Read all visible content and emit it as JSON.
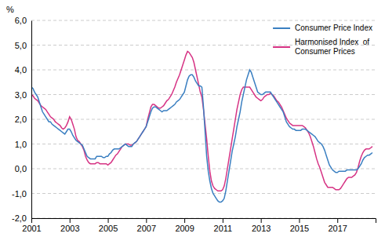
{
  "chart_data": {
    "type": "line",
    "ylabel": "%",
    "x": [
      2001,
      2001.0833333333333,
      2001.1666666666667,
      2001.25,
      2001.3333333333333,
      2001.4166666666667,
      2001.5,
      2001.5833333333333,
      2001.6666666666667,
      2001.75,
      2001.8333333333333,
      2001.9166666666667,
      2002,
      2002.0833333333333,
      2002.1666666666667,
      2002.25,
      2002.3333333333333,
      2002.4166666666667,
      2002.5,
      2002.5833333333333,
      2002.6666666666667,
      2002.75,
      2002.8333333333333,
      2002.9166666666667,
      2003,
      2003.0833333333333,
      2003.1666666666667,
      2003.25,
      2003.3333333333333,
      2003.4166666666667,
      2003.5,
      2003.5833333333333,
      2003.6666666666667,
      2003.75,
      2003.8333333333333,
      2003.9166666666667,
      2004,
      2004.0833333333333,
      2004.1666666666667,
      2004.25,
      2004.3333333333333,
      2004.4166666666667,
      2004.5,
      2004.5833333333333,
      2004.6666666666667,
      2004.75,
      2004.8333333333333,
      2004.9166666666667,
      2005,
      2005.0833333333333,
      2005.1666666666667,
      2005.25,
      2005.3333333333333,
      2005.4166666666667,
      2005.5,
      2005.5833333333333,
      2005.6666666666667,
      2005.75,
      2005.8333333333333,
      2005.9166666666667,
      2006,
      2006.0833333333333,
      2006.1666666666667,
      2006.25,
      2006.3333333333333,
      2006.4166666666667,
      2006.5,
      2006.5833333333333,
      2006.6666666666667,
      2006.75,
      2006.8333333333333,
      2006.9166666666667,
      2007,
      2007.0833333333333,
      2007.1666666666667,
      2007.25,
      2007.3333333333333,
      2007.4166666666667,
      2007.5,
      2007.5833333333333,
      2007.6666666666667,
      2007.75,
      2007.8333333333333,
      2007.9166666666667,
      2008,
      2008.0833333333333,
      2008.1666666666667,
      2008.25,
      2008.3333333333333,
      2008.4166666666667,
      2008.5,
      2008.5833333333333,
      2008.6666666666667,
      2008.75,
      2008.8333333333333,
      2008.9166666666667,
      2009,
      2009.0833333333333,
      2009.1666666666667,
      2009.25,
      2009.3333333333333,
      2009.4166666666667,
      2009.5,
      2009.5833333333333,
      2009.6666666666667,
      2009.75,
      2009.8333333333333,
      2009.9166666666667,
      2010,
      2010.0833333333333,
      2010.1666666666667,
      2010.25,
      2010.3333333333333,
      2010.4166666666667,
      2010.5,
      2010.5833333333333,
      2010.6666666666667,
      2010.75,
      2010.8333333333333,
      2010.9166666666667,
      2011,
      2011.0833333333333,
      2011.1666666666667,
      2011.25,
      2011.3333333333333,
      2011.4166666666667,
      2011.5,
      2011.5833333333333,
      2011.6666666666667,
      2011.75,
      2011.8333333333333,
      2011.9166666666667,
      2012,
      2012.0833333333333,
      2012.1666666666667,
      2012.25,
      2012.3333333333333,
      2012.4166666666667,
      2012.5,
      2012.5833333333333,
      2012.6666666666667,
      2012.75,
      2012.8333333333333,
      2012.9166666666667,
      2013,
      2013.0833333333333,
      2013.1666666666667,
      2013.25,
      2013.3333333333333,
      2013.4166666666667,
      2013.5,
      2013.5833333333333,
      2013.6666666666667,
      2013.75,
      2013.8333333333333,
      2013.9166666666667,
      2014,
      2014.0833333333333,
      2014.1666666666667,
      2014.25,
      2014.3333333333333,
      2014.4166666666667,
      2014.5,
      2014.5833333333333,
      2014.6666666666667,
      2014.75,
      2014.8333333333333,
      2014.9166666666667,
      2015,
      2015.0833333333333,
      2015.1666666666667,
      2015.25,
      2015.3333333333333,
      2015.4166666666667,
      2015.5,
      2015.5833333333333,
      2015.6666666666667,
      2015.75,
      2015.8333333333333,
      2015.9166666666667,
      2016,
      2016.0833333333333,
      2016.1666666666667,
      2016.25,
      2016.3333333333333,
      2016.4166666666667,
      2016.5,
      2016.5833333333333,
      2016.6666666666667,
      2016.75,
      2016.8333333333333,
      2016.9166666666667,
      2017,
      2017.0833333333333,
      2017.1666666666667,
      2017.25,
      2017.3333333333333,
      2017.4166666666667,
      2017.5,
      2017.5833333333333,
      2017.6666666666667,
      2017.75,
      2017.8333333333333,
      2017.9166666666667,
      2018,
      2018.0833333333333,
      2018.1666666666667,
      2018.25,
      2018.3333333333333,
      2018.4166666666667,
      2018.5,
      2018.5833333333333,
      2018.6666666666667,
      2018.75,
      2018.8333333333333
    ],
    "series": [
      {
        "name": "Consumer Price Index",
        "color": "#3a7fc1",
        "values": [
          3.3,
          3.25,
          3.1,
          3.0,
          2.9,
          2.7,
          2.5,
          2.3,
          2.2,
          2.1,
          2.0,
          1.9,
          1.9,
          1.8,
          1.75,
          1.7,
          1.65,
          1.6,
          1.55,
          1.5,
          1.45,
          1.4,
          1.5,
          1.6,
          1.6,
          1.5,
          1.35,
          1.25,
          1.15,
          1.1,
          1.05,
          1.0,
          0.95,
          0.8,
          0.65,
          0.5,
          0.45,
          0.4,
          0.4,
          0.4,
          0.4,
          0.5,
          0.5,
          0.5,
          0.5,
          0.45,
          0.45,
          0.5,
          0.5,
          0.6,
          0.65,
          0.75,
          0.8,
          0.8,
          0.8,
          0.8,
          0.85,
          0.9,
          0.95,
          1.0,
          0.95,
          0.9,
          0.9,
          0.9,
          1.0,
          1.05,
          1.1,
          1.2,
          1.3,
          1.4,
          1.5,
          1.6,
          1.7,
          1.9,
          2.1,
          2.3,
          2.45,
          2.5,
          2.5,
          2.45,
          2.4,
          2.35,
          2.3,
          2.35,
          2.35,
          2.35,
          2.4,
          2.45,
          2.5,
          2.55,
          2.6,
          2.7,
          2.75,
          2.8,
          2.9,
          3.0,
          3.1,
          3.35,
          3.6,
          3.75,
          3.8,
          3.8,
          3.7,
          3.55,
          3.45,
          3.35,
          3.35,
          3.3,
          2.5,
          1.5,
          0.5,
          -0.1,
          -0.5,
          -0.8,
          -1.0,
          -1.1,
          -1.2,
          -1.3,
          -1.35,
          -1.35,
          -1.3,
          -1.2,
          -0.9,
          -0.5,
          -0.1,
          0.3,
          0.7,
          1.0,
          1.3,
          1.7,
          2.0,
          2.3,
          2.7,
          3.0,
          3.3,
          3.6,
          3.8,
          4.0,
          3.9,
          3.7,
          3.5,
          3.3,
          3.1,
          3.05,
          3.0,
          3.0,
          3.05,
          3.1,
          3.1,
          3.1,
          3.1,
          3.0,
          2.9,
          2.8,
          2.7,
          2.6,
          2.5,
          2.4,
          2.3,
          2.1,
          1.9,
          1.8,
          1.7,
          1.65,
          1.6,
          1.6,
          1.55,
          1.55,
          1.55,
          1.55,
          1.6,
          1.6,
          1.6,
          1.55,
          1.5,
          1.45,
          1.4,
          1.35,
          1.3,
          1.2,
          1.1,
          1.05,
          1.0,
          0.9,
          0.75,
          0.55,
          0.35,
          0.15,
          0.05,
          -0.05,
          -0.1,
          -0.15,
          -0.15,
          -0.1,
          -0.1,
          -0.1,
          -0.1,
          -0.1,
          -0.05,
          -0.05,
          -0.05,
          -0.05,
          -0.05,
          -0.05,
          -0.05,
          0.0,
          0.1,
          0.2,
          0.35,
          0.45,
          0.5,
          0.55,
          0.55,
          0.6,
          0.65
        ]
      },
      {
        "name": "Harmonised Index  of\nConsumer Prices",
        "color": "#d63384",
        "values": [
          3.0,
          2.95,
          2.85,
          2.8,
          2.75,
          2.65,
          2.55,
          2.5,
          2.45,
          2.4,
          2.3,
          2.2,
          2.1,
          2.05,
          2.0,
          1.9,
          1.85,
          1.8,
          1.75,
          1.65,
          1.6,
          1.65,
          1.75,
          1.9,
          2.1,
          2.0,
          1.8,
          1.6,
          1.3,
          1.15,
          1.1,
          1.0,
          0.9,
          0.75,
          0.5,
          0.35,
          0.25,
          0.2,
          0.2,
          0.2,
          0.2,
          0.25,
          0.25,
          0.2,
          0.2,
          0.2,
          0.2,
          0.2,
          0.15,
          0.2,
          0.25,
          0.35,
          0.45,
          0.55,
          0.6,
          0.7,
          0.8,
          0.9,
          0.95,
          1.0,
          1.0,
          1.0,
          0.95,
          0.95,
          1.0,
          1.05,
          1.1,
          1.2,
          1.3,
          1.4,
          1.5,
          1.6,
          1.7,
          2.0,
          2.25,
          2.5,
          2.6,
          2.6,
          2.55,
          2.5,
          2.45,
          2.45,
          2.5,
          2.55,
          2.65,
          2.75,
          2.8,
          2.9,
          3.0,
          3.15,
          3.3,
          3.5,
          3.65,
          3.8,
          4.0,
          4.2,
          4.4,
          4.6,
          4.75,
          4.7,
          4.6,
          4.5,
          4.3,
          4.0,
          3.7,
          3.4,
          3.1,
          2.9,
          2.4,
          1.8,
          1.2,
          0.5,
          -0.1,
          -0.5,
          -0.7,
          -0.8,
          -0.85,
          -0.9,
          -0.9,
          -0.9,
          -0.85,
          -0.7,
          -0.4,
          0.0,
          0.4,
          0.8,
          1.2,
          1.6,
          2.0,
          2.4,
          2.7,
          3.0,
          3.2,
          3.3,
          3.3,
          3.3,
          3.3,
          3.3,
          3.2,
          3.1,
          3.0,
          2.9,
          2.85,
          2.8,
          2.75,
          2.8,
          2.9,
          2.95,
          3.0,
          3.0,
          3.05,
          3.0,
          2.95,
          2.85,
          2.75,
          2.7,
          2.6,
          2.5,
          2.35,
          2.2,
          2.05,
          1.95,
          1.85,
          1.8,
          1.75,
          1.75,
          1.75,
          1.75,
          1.75,
          1.75,
          1.75,
          1.7,
          1.65,
          1.55,
          1.45,
          1.3,
          1.1,
          0.9,
          0.65,
          0.4,
          0.2,
          0.05,
          -0.15,
          -0.35,
          -0.55,
          -0.65,
          -0.75,
          -0.75,
          -0.75,
          -0.75,
          -0.8,
          -0.85,
          -0.85,
          -0.85,
          -0.8,
          -0.7,
          -0.6,
          -0.5,
          -0.4,
          -0.35,
          -0.35,
          -0.35,
          -0.3,
          -0.25,
          -0.15,
          0.05,
          0.3,
          0.5,
          0.65,
          0.75,
          0.8,
          0.8,
          0.8,
          0.85,
          0.9
        ]
      }
    ],
    "xlim": [
      2001.0,
      2019.0
    ],
    "xticks": [
      2001,
      2003,
      2005,
      2007,
      2009,
      2011,
      2013,
      2015,
      2017
    ],
    "ylim": [
      -2.0,
      6.0
    ],
    "yticks": [
      {
        "value": -2.0,
        "label": "-2,0"
      },
      {
        "value": -1.0,
        "label": "-1,0"
      },
      {
        "value": 0.0,
        "label": "0,0"
      },
      {
        "value": 1.0,
        "label": "1,0"
      },
      {
        "value": 2.0,
        "label": "2,0"
      },
      {
        "value": 3.0,
        "label": "3,0"
      },
      {
        "value": 4.0,
        "label": "4,0"
      },
      {
        "value": 5.0,
        "label": "5,0"
      },
      {
        "value": 6.0,
        "label": "6,0"
      }
    ],
    "grid": true,
    "legend": "upper right"
  }
}
